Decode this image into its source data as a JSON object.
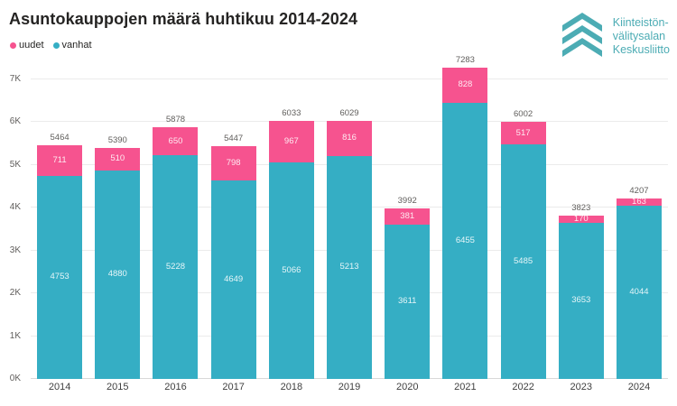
{
  "title": "Asuntokauppojen määrä huhtikuu 2014-2024",
  "legend": [
    {
      "label": "uudet",
      "color": "#F6538F"
    },
    {
      "label": "vanhat",
      "color": "#35AEC4"
    }
  ],
  "logo": {
    "lines": [
      "Kiinteistön-",
      "välitysalan",
      "Keskusliitto"
    ],
    "color": "#4CACB4"
  },
  "colors": {
    "uudet": "#F6538F",
    "vanhat": "#35AEC4",
    "grid": "#EBEBEB",
    "axis_text": "#605E5C",
    "title_text": "#252423"
  },
  "chart_data": {
    "type": "bar",
    "stacked": true,
    "orientation": "vertical",
    "title": "Asuntokauppojen määrä huhtikuu 2014-2024",
    "xlabel": "",
    "ylabel": "",
    "categories": [
      "2014",
      "2015",
      "2016",
      "2017",
      "2018",
      "2019",
      "2020",
      "2021",
      "2022",
      "2023",
      "2024"
    ],
    "series": [
      {
        "name": "uudet",
        "color": "#F6538F",
        "values": [
          711,
          510,
          650,
          798,
          967,
          816,
          381,
          828,
          517,
          170,
          163
        ]
      },
      {
        "name": "vanhat",
        "color": "#35AEC4",
        "values": [
          4753,
          4880,
          5228,
          4649,
          5066,
          5213,
          3611,
          6455,
          5485,
          3653,
          4044
        ]
      }
    ],
    "stack_order_bottom_to_top": [
      "vanhat",
      "uudet"
    ],
    "totals": [
      5464,
      5390,
      5878,
      5447,
      6033,
      6029,
      3992,
      7283,
      6002,
      3823,
      4207
    ],
    "y_ticks": [
      {
        "label": "0K",
        "value": 0
      },
      {
        "label": "1K",
        "value": 1000
      },
      {
        "label": "2K",
        "value": 2000
      },
      {
        "label": "3K",
        "value": 3000
      },
      {
        "label": "4K",
        "value": 4000
      },
      {
        "label": "5K",
        "value": 5000
      },
      {
        "label": "6K",
        "value": 6000
      },
      {
        "label": "7K",
        "value": 7000
      }
    ],
    "ylim": [
      0,
      7350
    ],
    "grid": true,
    "legend_position": "top-left",
    "value_labels": "segment values inside bars, totals above bars"
  }
}
